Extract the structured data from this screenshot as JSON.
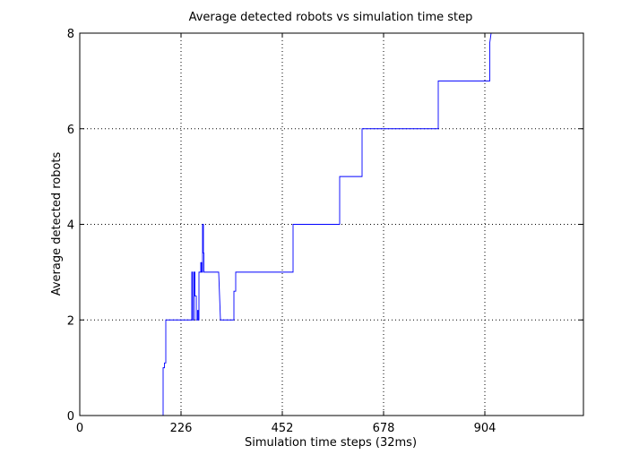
{
  "chart_data": {
    "type": "line",
    "title": "Average detected robots vs simulation time step",
    "xlabel": "Simulation time steps (32ms)",
    "ylabel": "Average detected robots",
    "xlim": [
      0,
      1124
    ],
    "ylim": [
      0,
      8
    ],
    "xticks": [
      0,
      226,
      452,
      678,
      904
    ],
    "yticks": [
      0,
      2,
      4,
      6,
      8
    ],
    "grid": true,
    "line_color": "#0000ff",
    "series": [
      {
        "x": [
          0,
          186,
          186,
          189,
          189,
          192,
          192,
          192,
          194,
          194,
          250,
          250,
          252,
          252,
          255,
          255,
          257,
          257,
          260,
          260,
          263,
          263,
          264,
          264,
          266,
          266,
          270,
          270,
          272,
          272,
          274,
          274,
          276,
          276,
          277,
          277,
          310,
          310,
          314,
          314,
          344,
          344,
          348,
          348,
          476,
          476,
          580,
          580,
          630,
          630,
          800,
          800,
          915,
          915,
          918
        ],
        "y": [
          0,
          0,
          1,
          1,
          1.1,
          1.1,
          1.9,
          2,
          2,
          2,
          2,
          3,
          3,
          2,
          2,
          3,
          3,
          2.5,
          2.5,
          2,
          2,
          2.2,
          2.2,
          2,
          2,
          3,
          3,
          3.2,
          3.2,
          3,
          3,
          4,
          4,
          3.4,
          3.4,
          3,
          3,
          3,
          2,
          2,
          2,
          2.6,
          2.6,
          3,
          3,
          4,
          4,
          5,
          5,
          6,
          6,
          7,
          7,
          7.8,
          8
        ]
      }
    ]
  }
}
